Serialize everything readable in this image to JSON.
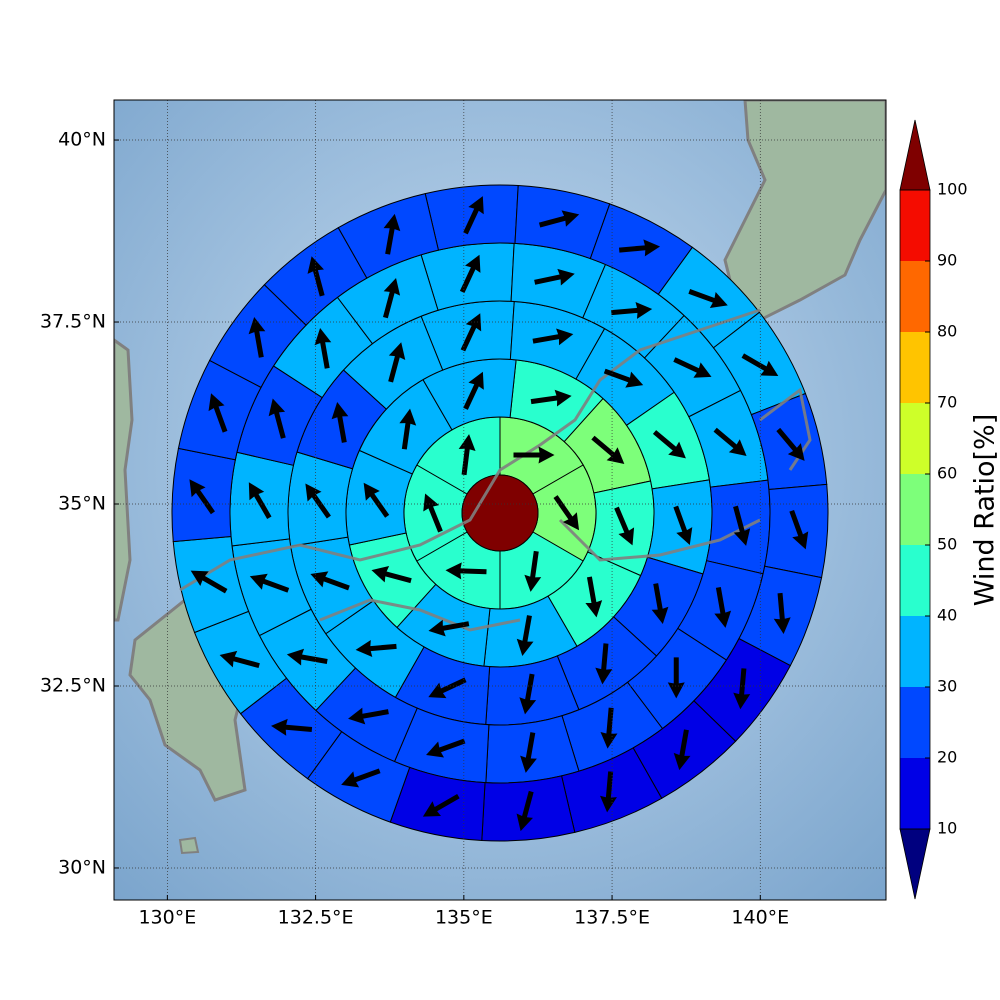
{
  "chart_data": {
    "type": "polar-grid-map",
    "xlim": [
      129.1,
      142.12
    ],
    "ylim": [
      29.56,
      40.55
    ],
    "xticks": [
      {
        "value": 130,
        "label": "130°E"
      },
      {
        "value": 132.5,
        "label": "132.5°E"
      },
      {
        "value": 135,
        "label": "135°E"
      },
      {
        "value": 137.5,
        "label": "137.5°E"
      },
      {
        "value": 140,
        "label": "140°E"
      }
    ],
    "yticks": [
      {
        "value": 30,
        "label": "30°N"
      },
      {
        "value": 32.5,
        "label": "32.5°N"
      },
      {
        "value": 35,
        "label": "35°N"
      },
      {
        "value": 37.5,
        "label": "37.5°N"
      },
      {
        "value": 40,
        "label": "40°N"
      }
    ],
    "grid": true,
    "center_value": 105,
    "rings": [
      {
        "values": [
          55,
          55,
          45,
          45,
          45,
          45
        ],
        "directions": [
          0,
          -55,
          -98,
          178,
          112,
          83
        ]
      },
      {
        "values": [
          45,
          55,
          45,
          45,
          35,
          35,
          45,
          35,
          35,
          35
        ],
        "directions": [
          8,
          -40,
          -67,
          -80,
          -100,
          190,
          165,
          125,
          82,
          65
        ]
      },
      {
        "values": [
          35,
          35,
          35,
          45,
          35,
          25,
          25,
          25,
          25,
          35,
          35,
          35,
          25,
          35
        ],
        "directions": [
          65,
          10,
          -20,
          -40,
          -70,
          -80,
          -95,
          -100,
          205,
          185,
          160,
          125,
          100,
          75
        ]
      },
      {
        "values": [
          35,
          35,
          35,
          35,
          35,
          25,
          25,
          25,
          25,
          25,
          25,
          25,
          35,
          35,
          35,
          25,
          35,
          35
        ],
        "directions": [
          65,
          12,
          5,
          -25,
          -40,
          -75,
          -80,
          -90,
          -95,
          -100,
          200,
          190,
          170,
          160,
          120,
          105,
          100,
          75
        ]
      },
      {
        "values": [
          25,
          25,
          25,
          35,
          35,
          25,
          25,
          25,
          15,
          15,
          15,
          15,
          15,
          25,
          25,
          35,
          35,
          25,
          25,
          25,
          25,
          25
        ],
        "directions": [
          65,
          15,
          5,
          -20,
          -30,
          -50,
          -70,
          -85,
          -95,
          -100,
          -95,
          -105,
          210,
          200,
          175,
          165,
          150,
          125,
          110,
          100,
          105,
          80
        ]
      }
    ],
    "colorbar": {
      "label": "Wind Ratio[%]",
      "levels": [
        10,
        20,
        30,
        40,
        50,
        60,
        70,
        80,
        90,
        100
      ],
      "colors": [
        "#0000e6",
        "#0048ff",
        "#00b4ff",
        "#29ffce",
        "#7dff7a",
        "#ceff29",
        "#ffc400",
        "#ff6800",
        "#f50c00"
      ],
      "under_color": "#00007f",
      "over_color": "#7f0000"
    }
  }
}
